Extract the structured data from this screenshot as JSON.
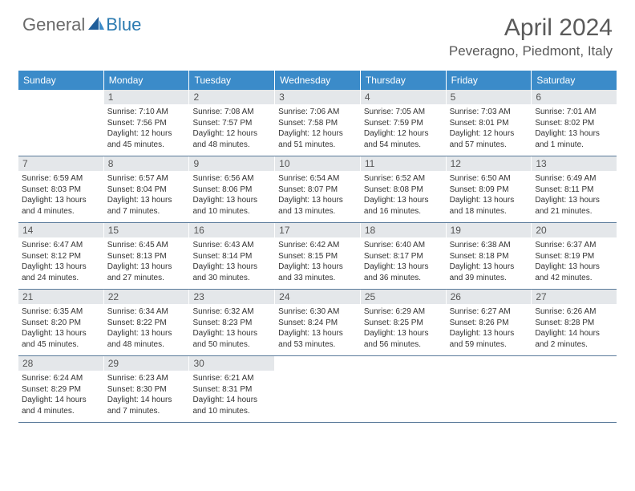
{
  "logo": {
    "general": "General",
    "blue": "Blue"
  },
  "title": "April 2024",
  "location": "Peveragno, Piedmont, Italy",
  "colors": {
    "header_bg": "#3b8bc9",
    "header_text": "#ffffff",
    "daynum_bg": "#e4e7ea",
    "row_border": "#5a7a9a",
    "logo_gray": "#6a6a6a",
    "logo_blue": "#2a7ab0",
    "title_color": "#5a5a5a"
  },
  "dayNames": [
    "Sunday",
    "Monday",
    "Tuesday",
    "Wednesday",
    "Thursday",
    "Friday",
    "Saturday"
  ],
  "weeks": [
    [
      {
        "num": "",
        "sunrise": "",
        "sunset": "",
        "daylight1": "",
        "daylight2": "",
        "blank": true
      },
      {
        "num": "1",
        "sunrise": "Sunrise: 7:10 AM",
        "sunset": "Sunset: 7:56 PM",
        "daylight1": "Daylight: 12 hours",
        "daylight2": "and 45 minutes."
      },
      {
        "num": "2",
        "sunrise": "Sunrise: 7:08 AM",
        "sunset": "Sunset: 7:57 PM",
        "daylight1": "Daylight: 12 hours",
        "daylight2": "and 48 minutes."
      },
      {
        "num": "3",
        "sunrise": "Sunrise: 7:06 AM",
        "sunset": "Sunset: 7:58 PM",
        "daylight1": "Daylight: 12 hours",
        "daylight2": "and 51 minutes."
      },
      {
        "num": "4",
        "sunrise": "Sunrise: 7:05 AM",
        "sunset": "Sunset: 7:59 PM",
        "daylight1": "Daylight: 12 hours",
        "daylight2": "and 54 minutes."
      },
      {
        "num": "5",
        "sunrise": "Sunrise: 7:03 AM",
        "sunset": "Sunset: 8:01 PM",
        "daylight1": "Daylight: 12 hours",
        "daylight2": "and 57 minutes."
      },
      {
        "num": "6",
        "sunrise": "Sunrise: 7:01 AM",
        "sunset": "Sunset: 8:02 PM",
        "daylight1": "Daylight: 13 hours",
        "daylight2": "and 1 minute."
      }
    ],
    [
      {
        "num": "7",
        "sunrise": "Sunrise: 6:59 AM",
        "sunset": "Sunset: 8:03 PM",
        "daylight1": "Daylight: 13 hours",
        "daylight2": "and 4 minutes."
      },
      {
        "num": "8",
        "sunrise": "Sunrise: 6:57 AM",
        "sunset": "Sunset: 8:04 PM",
        "daylight1": "Daylight: 13 hours",
        "daylight2": "and 7 minutes."
      },
      {
        "num": "9",
        "sunrise": "Sunrise: 6:56 AM",
        "sunset": "Sunset: 8:06 PM",
        "daylight1": "Daylight: 13 hours",
        "daylight2": "and 10 minutes."
      },
      {
        "num": "10",
        "sunrise": "Sunrise: 6:54 AM",
        "sunset": "Sunset: 8:07 PM",
        "daylight1": "Daylight: 13 hours",
        "daylight2": "and 13 minutes."
      },
      {
        "num": "11",
        "sunrise": "Sunrise: 6:52 AM",
        "sunset": "Sunset: 8:08 PM",
        "daylight1": "Daylight: 13 hours",
        "daylight2": "and 16 minutes."
      },
      {
        "num": "12",
        "sunrise": "Sunrise: 6:50 AM",
        "sunset": "Sunset: 8:09 PM",
        "daylight1": "Daylight: 13 hours",
        "daylight2": "and 18 minutes."
      },
      {
        "num": "13",
        "sunrise": "Sunrise: 6:49 AM",
        "sunset": "Sunset: 8:11 PM",
        "daylight1": "Daylight: 13 hours",
        "daylight2": "and 21 minutes."
      }
    ],
    [
      {
        "num": "14",
        "sunrise": "Sunrise: 6:47 AM",
        "sunset": "Sunset: 8:12 PM",
        "daylight1": "Daylight: 13 hours",
        "daylight2": "and 24 minutes."
      },
      {
        "num": "15",
        "sunrise": "Sunrise: 6:45 AM",
        "sunset": "Sunset: 8:13 PM",
        "daylight1": "Daylight: 13 hours",
        "daylight2": "and 27 minutes."
      },
      {
        "num": "16",
        "sunrise": "Sunrise: 6:43 AM",
        "sunset": "Sunset: 8:14 PM",
        "daylight1": "Daylight: 13 hours",
        "daylight2": "and 30 minutes."
      },
      {
        "num": "17",
        "sunrise": "Sunrise: 6:42 AM",
        "sunset": "Sunset: 8:15 PM",
        "daylight1": "Daylight: 13 hours",
        "daylight2": "and 33 minutes."
      },
      {
        "num": "18",
        "sunrise": "Sunrise: 6:40 AM",
        "sunset": "Sunset: 8:17 PM",
        "daylight1": "Daylight: 13 hours",
        "daylight2": "and 36 minutes."
      },
      {
        "num": "19",
        "sunrise": "Sunrise: 6:38 AM",
        "sunset": "Sunset: 8:18 PM",
        "daylight1": "Daylight: 13 hours",
        "daylight2": "and 39 minutes."
      },
      {
        "num": "20",
        "sunrise": "Sunrise: 6:37 AM",
        "sunset": "Sunset: 8:19 PM",
        "daylight1": "Daylight: 13 hours",
        "daylight2": "and 42 minutes."
      }
    ],
    [
      {
        "num": "21",
        "sunrise": "Sunrise: 6:35 AM",
        "sunset": "Sunset: 8:20 PM",
        "daylight1": "Daylight: 13 hours",
        "daylight2": "and 45 minutes."
      },
      {
        "num": "22",
        "sunrise": "Sunrise: 6:34 AM",
        "sunset": "Sunset: 8:22 PM",
        "daylight1": "Daylight: 13 hours",
        "daylight2": "and 48 minutes."
      },
      {
        "num": "23",
        "sunrise": "Sunrise: 6:32 AM",
        "sunset": "Sunset: 8:23 PM",
        "daylight1": "Daylight: 13 hours",
        "daylight2": "and 50 minutes."
      },
      {
        "num": "24",
        "sunrise": "Sunrise: 6:30 AM",
        "sunset": "Sunset: 8:24 PM",
        "daylight1": "Daylight: 13 hours",
        "daylight2": "and 53 minutes."
      },
      {
        "num": "25",
        "sunrise": "Sunrise: 6:29 AM",
        "sunset": "Sunset: 8:25 PM",
        "daylight1": "Daylight: 13 hours",
        "daylight2": "and 56 minutes."
      },
      {
        "num": "26",
        "sunrise": "Sunrise: 6:27 AM",
        "sunset": "Sunset: 8:26 PM",
        "daylight1": "Daylight: 13 hours",
        "daylight2": "and 59 minutes."
      },
      {
        "num": "27",
        "sunrise": "Sunrise: 6:26 AM",
        "sunset": "Sunset: 8:28 PM",
        "daylight1": "Daylight: 14 hours",
        "daylight2": "and 2 minutes."
      }
    ],
    [
      {
        "num": "28",
        "sunrise": "Sunrise: 6:24 AM",
        "sunset": "Sunset: 8:29 PM",
        "daylight1": "Daylight: 14 hours",
        "daylight2": "and 4 minutes."
      },
      {
        "num": "29",
        "sunrise": "Sunrise: 6:23 AM",
        "sunset": "Sunset: 8:30 PM",
        "daylight1": "Daylight: 14 hours",
        "daylight2": "and 7 minutes."
      },
      {
        "num": "30",
        "sunrise": "Sunrise: 6:21 AM",
        "sunset": "Sunset: 8:31 PM",
        "daylight1": "Daylight: 14 hours",
        "daylight2": "and 10 minutes."
      },
      {
        "num": "",
        "sunrise": "",
        "sunset": "",
        "daylight1": "",
        "daylight2": "",
        "blank": true
      },
      {
        "num": "",
        "sunrise": "",
        "sunset": "",
        "daylight1": "",
        "daylight2": "",
        "blank": true
      },
      {
        "num": "",
        "sunrise": "",
        "sunset": "",
        "daylight1": "",
        "daylight2": "",
        "blank": true
      },
      {
        "num": "",
        "sunrise": "",
        "sunset": "",
        "daylight1": "",
        "daylight2": "",
        "blank": true
      }
    ]
  ]
}
